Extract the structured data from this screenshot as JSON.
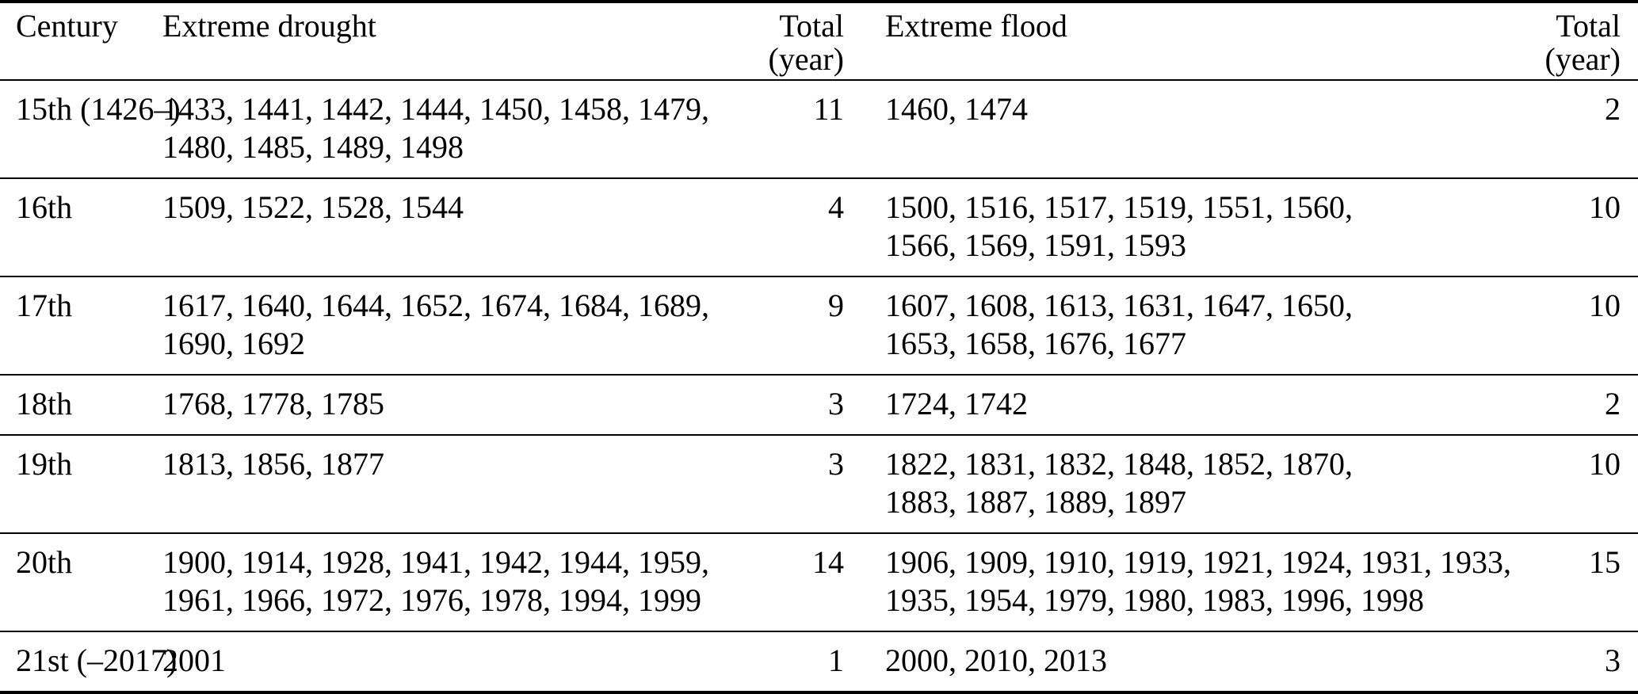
{
  "page": {
    "background_color": "#ffffff",
    "text_color": "#000000",
    "rule_color": "#000000"
  },
  "table": {
    "header": {
      "century": "Century",
      "drought": "Extreme drought",
      "drought_total": "Total\n(year)",
      "flood": "Extreme flood",
      "flood_total": "Total\n(year)"
    },
    "rows": [
      {
        "century": "15th (1426–)",
        "drought_years": "1433, 1441, 1442, 1444, 1450, 1458, 1479,\n1480, 1485, 1489, 1498",
        "drought_total": "11",
        "flood_years": "1460, 1474",
        "flood_total": "2"
      },
      {
        "century": "16th",
        "drought_years": "1509, 1522, 1528, 1544",
        "drought_total": "4",
        "flood_years": "1500, 1516, 1517, 1519, 1551, 1560,\n1566, 1569, 1591, 1593",
        "flood_total": "10"
      },
      {
        "century": "17th",
        "drought_years": "1617, 1640, 1644, 1652, 1674, 1684, 1689,\n1690, 1692",
        "drought_total": "9",
        "flood_years": "1607, 1608, 1613, 1631, 1647, 1650,\n1653, 1658, 1676, 1677",
        "flood_total": "10"
      },
      {
        "century": "18th",
        "drought_years": "1768, 1778, 1785",
        "drought_total": "3",
        "flood_years": "1724, 1742",
        "flood_total": "2"
      },
      {
        "century": "19th",
        "drought_years": "1813, 1856, 1877",
        "drought_total": "3",
        "flood_years": "1822, 1831, 1832, 1848, 1852, 1870,\n1883, 1887, 1889, 1897",
        "flood_total": "10"
      },
      {
        "century": "20th",
        "drought_years": "1900, 1914, 1928, 1941, 1942, 1944, 1959,\n1961, 1966, 1972, 1976, 1978, 1994, 1999",
        "drought_total": "14",
        "flood_years": "1906, 1909, 1910, 1919, 1921, 1924, 1931, 1933,\n1935, 1954, 1979, 1980, 1983, 1996, 1998",
        "flood_total": "15"
      },
      {
        "century": "21st (–2017)",
        "drought_years": "2001",
        "drought_total": "1",
        "flood_years": "2000, 2010, 2013",
        "flood_total": "3"
      }
    ]
  }
}
